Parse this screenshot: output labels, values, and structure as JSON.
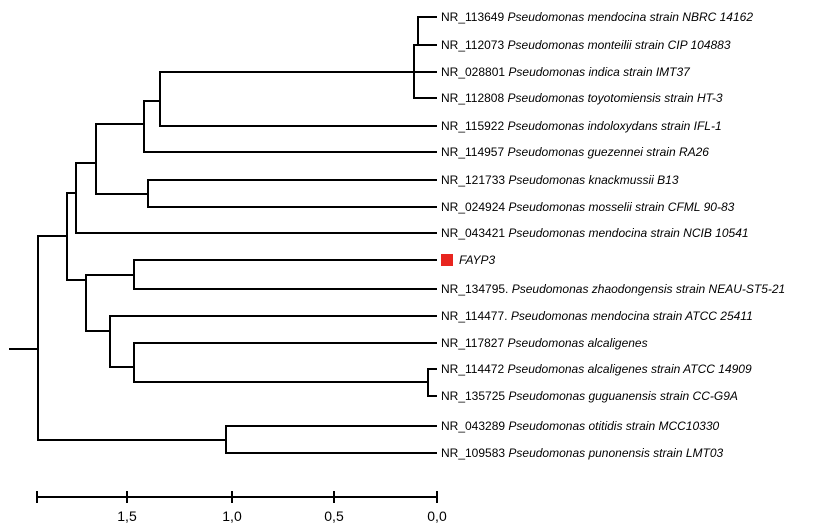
{
  "highlight_color": "#e8251f",
  "leaves": [
    {
      "accession": "NR_113649",
      "name": "Pseudomonas mendocina strain NBRC 14162"
    },
    {
      "accession": "NR_112073",
      "name": "Pseudomonas monteilii strain CIP 104883"
    },
    {
      "accession": "NR_028801",
      "name": "Pseudomonas indica strain IMT37"
    },
    {
      "accession": "NR_112808",
      "name": "Pseudomonas toyotomiensis strain HT-3"
    },
    {
      "accession": "NR_115922",
      "name": "Pseudomonas indoloxydans strain IFL-1"
    },
    {
      "accession": "NR_114957",
      "name": "Pseudomonas guezennei strain RA26"
    },
    {
      "accession": "NR_121733",
      "name": "Pseudomonas knackmussii B13"
    },
    {
      "accession": "NR_024924",
      "name": "Pseudomonas mosselii strain CFML 90-83"
    },
    {
      "accession": "NR_043421",
      "name": "Pseudomonas mendocina strain NCIB 10541"
    },
    {
      "accession": "",
      "name": "FAYP3",
      "highlight": true
    },
    {
      "accession": "NR_134795.",
      "name": "Pseudomonas zhaodongensis strain NEAU-ST5-21"
    },
    {
      "accession": "NR_114477.",
      "name": "Pseudomonas mendocina strain ATCC 25411"
    },
    {
      "accession": "NR_117827",
      "name": "Pseudomonas alcaligenes"
    },
    {
      "accession": "NR_114472",
      "name": "Pseudomonas alcaligenes strain ATCC 14909"
    },
    {
      "accession": "NR_135725",
      "name": "Pseudomonas guguanensis strain CC-G9A"
    },
    {
      "accession": "NR_043289",
      "name": "Pseudomonas otitidis strain MCC10330"
    },
    {
      "accession": "NR_109583",
      "name": "Pseudomonas punonensis strain LMT03"
    }
  ],
  "scale_bar": {
    "ticks": [
      {
        "value": 1.5,
        "label": "1,5"
      },
      {
        "value": 1.0,
        "label": "1,0"
      },
      {
        "value": 0.5,
        "label": "0,5"
      },
      {
        "value": 0.0,
        "label": "0,0"
      }
    ]
  }
}
